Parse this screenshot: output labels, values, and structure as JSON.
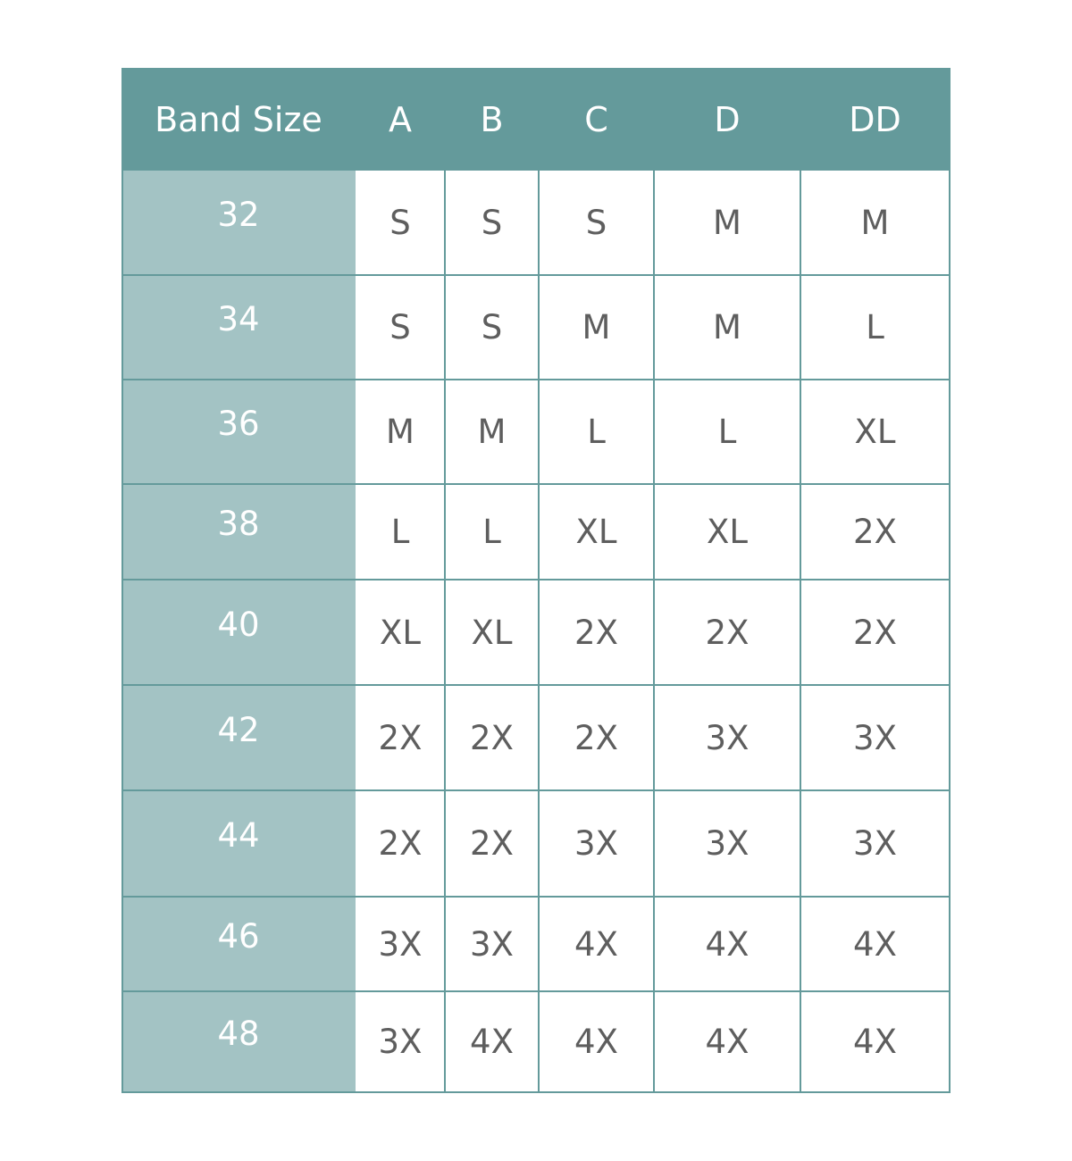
{
  "colors": {
    "header": "#649a9b",
    "band_column": "#a3c3c4",
    "grid": "#649a9b",
    "text": "#5e5e5e"
  },
  "table": {
    "headers": [
      "Band Size",
      "A",
      "B",
      "C",
      "D",
      "DD"
    ],
    "rows": [
      {
        "band": "32",
        "sizes": [
          "S",
          "S",
          "S",
          "M",
          "M"
        ]
      },
      {
        "band": "34",
        "sizes": [
          "S",
          "S",
          "M",
          "M",
          "L"
        ]
      },
      {
        "band": "36",
        "sizes": [
          "M",
          "M",
          "L",
          "L",
          "XL"
        ]
      },
      {
        "band": "38",
        "sizes": [
          "L",
          "L",
          "XL",
          "XL",
          "2X"
        ]
      },
      {
        "band": "40",
        "sizes": [
          "XL",
          "XL",
          "2X",
          "2X",
          "2X"
        ]
      },
      {
        "band": "42",
        "sizes": [
          "2X",
          "2X",
          "2X",
          "3X",
          "3X"
        ]
      },
      {
        "band": "44",
        "sizes": [
          "2X",
          "2X",
          "3X",
          "3X",
          "3X"
        ]
      },
      {
        "band": "46",
        "sizes": [
          "3X",
          "3X",
          "4X",
          "4X",
          "4X"
        ]
      },
      {
        "band": "48",
        "sizes": [
          "3X",
          "4X",
          "4X",
          "4X",
          "4X"
        ]
      }
    ]
  }
}
